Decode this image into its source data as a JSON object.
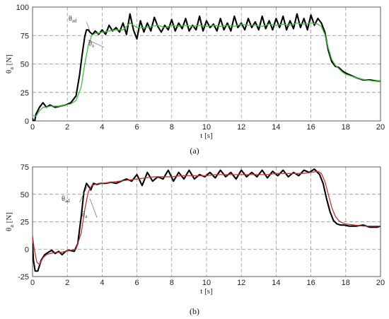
{
  "chart_data": [
    {
      "type": "line",
      "panel_label": "(a)",
      "xlabel_main": "t",
      "xlabel_unit": "[s]",
      "ylabel_main": "θ",
      "ylabel_sub": "a",
      "ylabel_unit": "[N]",
      "xlim": [
        0,
        20
      ],
      "ylim": [
        0,
        100
      ],
      "xticks": [
        "0",
        "2",
        "4",
        "6",
        "8",
        "10",
        "12",
        "14",
        "16",
        "18",
        "20"
      ],
      "yticks": [
        "0",
        "25",
        "50",
        "75",
        "100"
      ],
      "grid": true,
      "annotations": [
        {
          "main": "θ",
          "sub": "ad",
          "at_x": 2.7,
          "at_y": 88,
          "points_to_x": 3.3,
          "points_to_y": 79
        },
        {
          "main": "θ",
          "sub": "a",
          "at_x": 3.7,
          "at_y": 66,
          "points_to_x": 3.2,
          "points_to_y": 71
        }
      ],
      "series": [
        {
          "name": "θad",
          "color": "#000000",
          "x": [
            0,
            0.1,
            0.2,
            0.4,
            0.6,
            0.8,
            1.0,
            1.3,
            1.6,
            1.9,
            2.2,
            2.5,
            2.7,
            2.85,
            3.0,
            3.1,
            3.2,
            3.3,
            3.45,
            3.6,
            3.8,
            4.0,
            4.2,
            4.4,
            4.6,
            4.8,
            5.0,
            5.2,
            5.4,
            5.6,
            5.8,
            6.0,
            6.2,
            6.4,
            6.6,
            6.8,
            7.0,
            7.2,
            7.4,
            7.6,
            7.8,
            8.0,
            8.2,
            8.4,
            8.6,
            8.8,
            9.0,
            9.2,
            9.4,
            9.6,
            9.8,
            10.0,
            10.2,
            10.4,
            10.6,
            10.8,
            11.0,
            11.2,
            11.4,
            11.6,
            11.8,
            12.0,
            12.2,
            12.4,
            12.6,
            12.8,
            13.0,
            13.2,
            13.4,
            13.6,
            13.8,
            14.0,
            14.2,
            14.4,
            14.6,
            14.8,
            15.0,
            15.2,
            15.4,
            15.6,
            15.8,
            16.0,
            16.2,
            16.4,
            16.6,
            16.8,
            17.0,
            17.2,
            17.4,
            17.6,
            17.8,
            18.0,
            18.3,
            18.6,
            19.0,
            19.4,
            19.8,
            20.0
          ],
          "y": [
            2,
            -2,
            6,
            12,
            16,
            12,
            14,
            12,
            13,
            14,
            16,
            22,
            40,
            58,
            74,
            80,
            80,
            78,
            76,
            79,
            76,
            80,
            76,
            84,
            79,
            82,
            78,
            86,
            76,
            94,
            80,
            72,
            88,
            78,
            86,
            79,
            91,
            83,
            78,
            84,
            80,
            89,
            79,
            86,
            81,
            90,
            79,
            84,
            80,
            92,
            79,
            88,
            82,
            85,
            79,
            90,
            80,
            86,
            79,
            92,
            82,
            86,
            80,
            90,
            82,
            87,
            80,
            92,
            81,
            88,
            80,
            90,
            82,
            92,
            80,
            88,
            81,
            94,
            82,
            90,
            80,
            93,
            84,
            90,
            86,
            78,
            62,
            52,
            48,
            47,
            44,
            42,
            40,
            38,
            36,
            36,
            35,
            35
          ]
        },
        {
          "name": "θa",
          "color": "#3cc13c",
          "x": [
            0,
            0.2,
            0.4,
            0.6,
            0.8,
            1.0,
            1.3,
            1.6,
            1.9,
            2.2,
            2.5,
            2.8,
            3.0,
            3.2,
            3.4,
            3.6,
            3.8,
            4.0,
            4.4,
            4.8,
            5.2,
            5.6,
            6.0,
            6.4,
            6.8,
            7.2,
            7.6,
            8.0,
            8.4,
            8.8,
            9.2,
            9.6,
            10.0,
            10.4,
            10.8,
            11.2,
            11.6,
            12.0,
            12.4,
            12.8,
            13.2,
            13.6,
            14.0,
            14.4,
            14.8,
            15.2,
            15.6,
            16.0,
            16.4,
            16.6,
            16.8,
            17.0,
            17.2,
            17.4,
            17.6,
            17.8,
            18.0,
            18.4,
            18.8,
            19.2,
            19.6,
            20.0
          ],
          "y": [
            5,
            4,
            9,
            12,
            12,
            13,
            13,
            13,
            14,
            15,
            18,
            30,
            50,
            66,
            75,
            77,
            77,
            78,
            79,
            80,
            80,
            86,
            82,
            82,
            83,
            84,
            82,
            84,
            83,
            84,
            83,
            84,
            83,
            84,
            83,
            84,
            83,
            85,
            84,
            84,
            83,
            85,
            84,
            85,
            84,
            86,
            85,
            86,
            85,
            83,
            76,
            64,
            54,
            49,
            46,
            43,
            41,
            39,
            37,
            36,
            35,
            35
          ]
        }
      ]
    },
    {
      "type": "line",
      "panel_label": "(b)",
      "xlabel_main": "t",
      "xlabel_unit": "[s]",
      "ylabel_main": "θ",
      "ylabel_sub": "a",
      "ylabel_unit": "[N]",
      "xlim": [
        0,
        20
      ],
      "ylim": [
        -25,
        75
      ],
      "xticks": [
        "0",
        "2",
        "4",
        "6",
        "8",
        "10",
        "12",
        "14",
        "16",
        "18",
        "20"
      ],
      "yticks": [
        "-25",
        "0",
        "25",
        "50",
        "75"
      ],
      "grid": true,
      "annotations": [
        {
          "main": "θ",
          "sub": "ad",
          "at_x": 2.3,
          "at_y": 44,
          "points_to_x": 3.2,
          "points_to_y": 59
        },
        {
          "main": "θ",
          "sub": "a",
          "at_x": 3.3,
          "at_y": 30,
          "points_to_x": 3.3,
          "points_to_y": 46
        }
      ],
      "series": [
        {
          "name": "θad",
          "color": "#000000",
          "x": [
            0,
            0.05,
            0.15,
            0.3,
            0.5,
            0.7,
            0.9,
            1.1,
            1.3,
            1.5,
            1.7,
            1.9,
            2.1,
            2.4,
            2.6,
            2.8,
            2.95,
            3.1,
            3.2,
            3.35,
            3.5,
            3.7,
            3.9,
            4.2,
            4.5,
            4.8,
            5.1,
            5.4,
            5.7,
            6.0,
            6.3,
            6.6,
            6.9,
            7.2,
            7.5,
            7.8,
            8.1,
            8.4,
            8.7,
            9.0,
            9.3,
            9.6,
            9.9,
            10.2,
            10.5,
            10.8,
            11.1,
            11.4,
            11.7,
            12.0,
            12.3,
            12.6,
            12.9,
            13.2,
            13.5,
            13.8,
            14.1,
            14.4,
            14.7,
            15.0,
            15.3,
            15.6,
            15.9,
            16.2,
            16.5,
            16.7,
            16.9,
            17.1,
            17.3,
            17.5,
            17.7,
            17.9,
            18.2,
            18.6,
            19.0,
            19.4,
            19.8,
            20.0
          ],
          "y": [
            5,
            -10,
            -20,
            -20,
            -10,
            -5,
            -3,
            -1,
            -4,
            -2,
            -5,
            -2,
            -1,
            -2,
            5,
            30,
            52,
            60,
            58,
            54,
            60,
            59,
            60,
            60,
            61,
            60,
            62,
            64,
            62,
            68,
            58,
            70,
            62,
            66,
            64,
            72,
            62,
            70,
            64,
            72,
            64,
            68,
            66,
            70,
            65,
            72,
            66,
            70,
            64,
            72,
            66,
            70,
            66,
            72,
            65,
            71,
            67,
            72,
            66,
            70,
            67,
            72,
            70,
            73,
            68,
            60,
            46,
            34,
            26,
            23,
            22,
            22,
            21,
            21,
            22,
            20,
            20,
            21
          ]
        },
        {
          "name": "θa",
          "color": "#c83232",
          "x": [
            0,
            0.1,
            0.25,
            0.4,
            0.6,
            0.8,
            1.0,
            1.3,
            1.6,
            1.9,
            2.2,
            2.5,
            2.8,
            3.0,
            3.2,
            3.4,
            3.6,
            3.8,
            4.0,
            4.5,
            5.0,
            5.5,
            6.0,
            6.5,
            7.0,
            7.5,
            8.0,
            8.5,
            9.0,
            9.5,
            10.0,
            10.5,
            11.0,
            11.5,
            12.0,
            12.5,
            13.0,
            13.5,
            14.0,
            14.5,
            15.0,
            15.5,
            16.0,
            16.4,
            16.6,
            16.8,
            17.0,
            17.2,
            17.4,
            17.6,
            17.8,
            18.0,
            18.5,
            19.0,
            19.5,
            20.0
          ],
          "y": [
            12,
            0,
            -12,
            -14,
            -8,
            -5,
            -4,
            -3,
            -3,
            -2,
            -1,
            0,
            15,
            36,
            52,
            58,
            59,
            60,
            60,
            61,
            62,
            63,
            64,
            65,
            66,
            66,
            66,
            67,
            67,
            67,
            67,
            68,
            68,
            68,
            68,
            68,
            68,
            68,
            69,
            69,
            69,
            69,
            70,
            71,
            69,
            62,
            50,
            38,
            30,
            26,
            24,
            23,
            22,
            21,
            21,
            21
          ]
        }
      ]
    }
  ]
}
